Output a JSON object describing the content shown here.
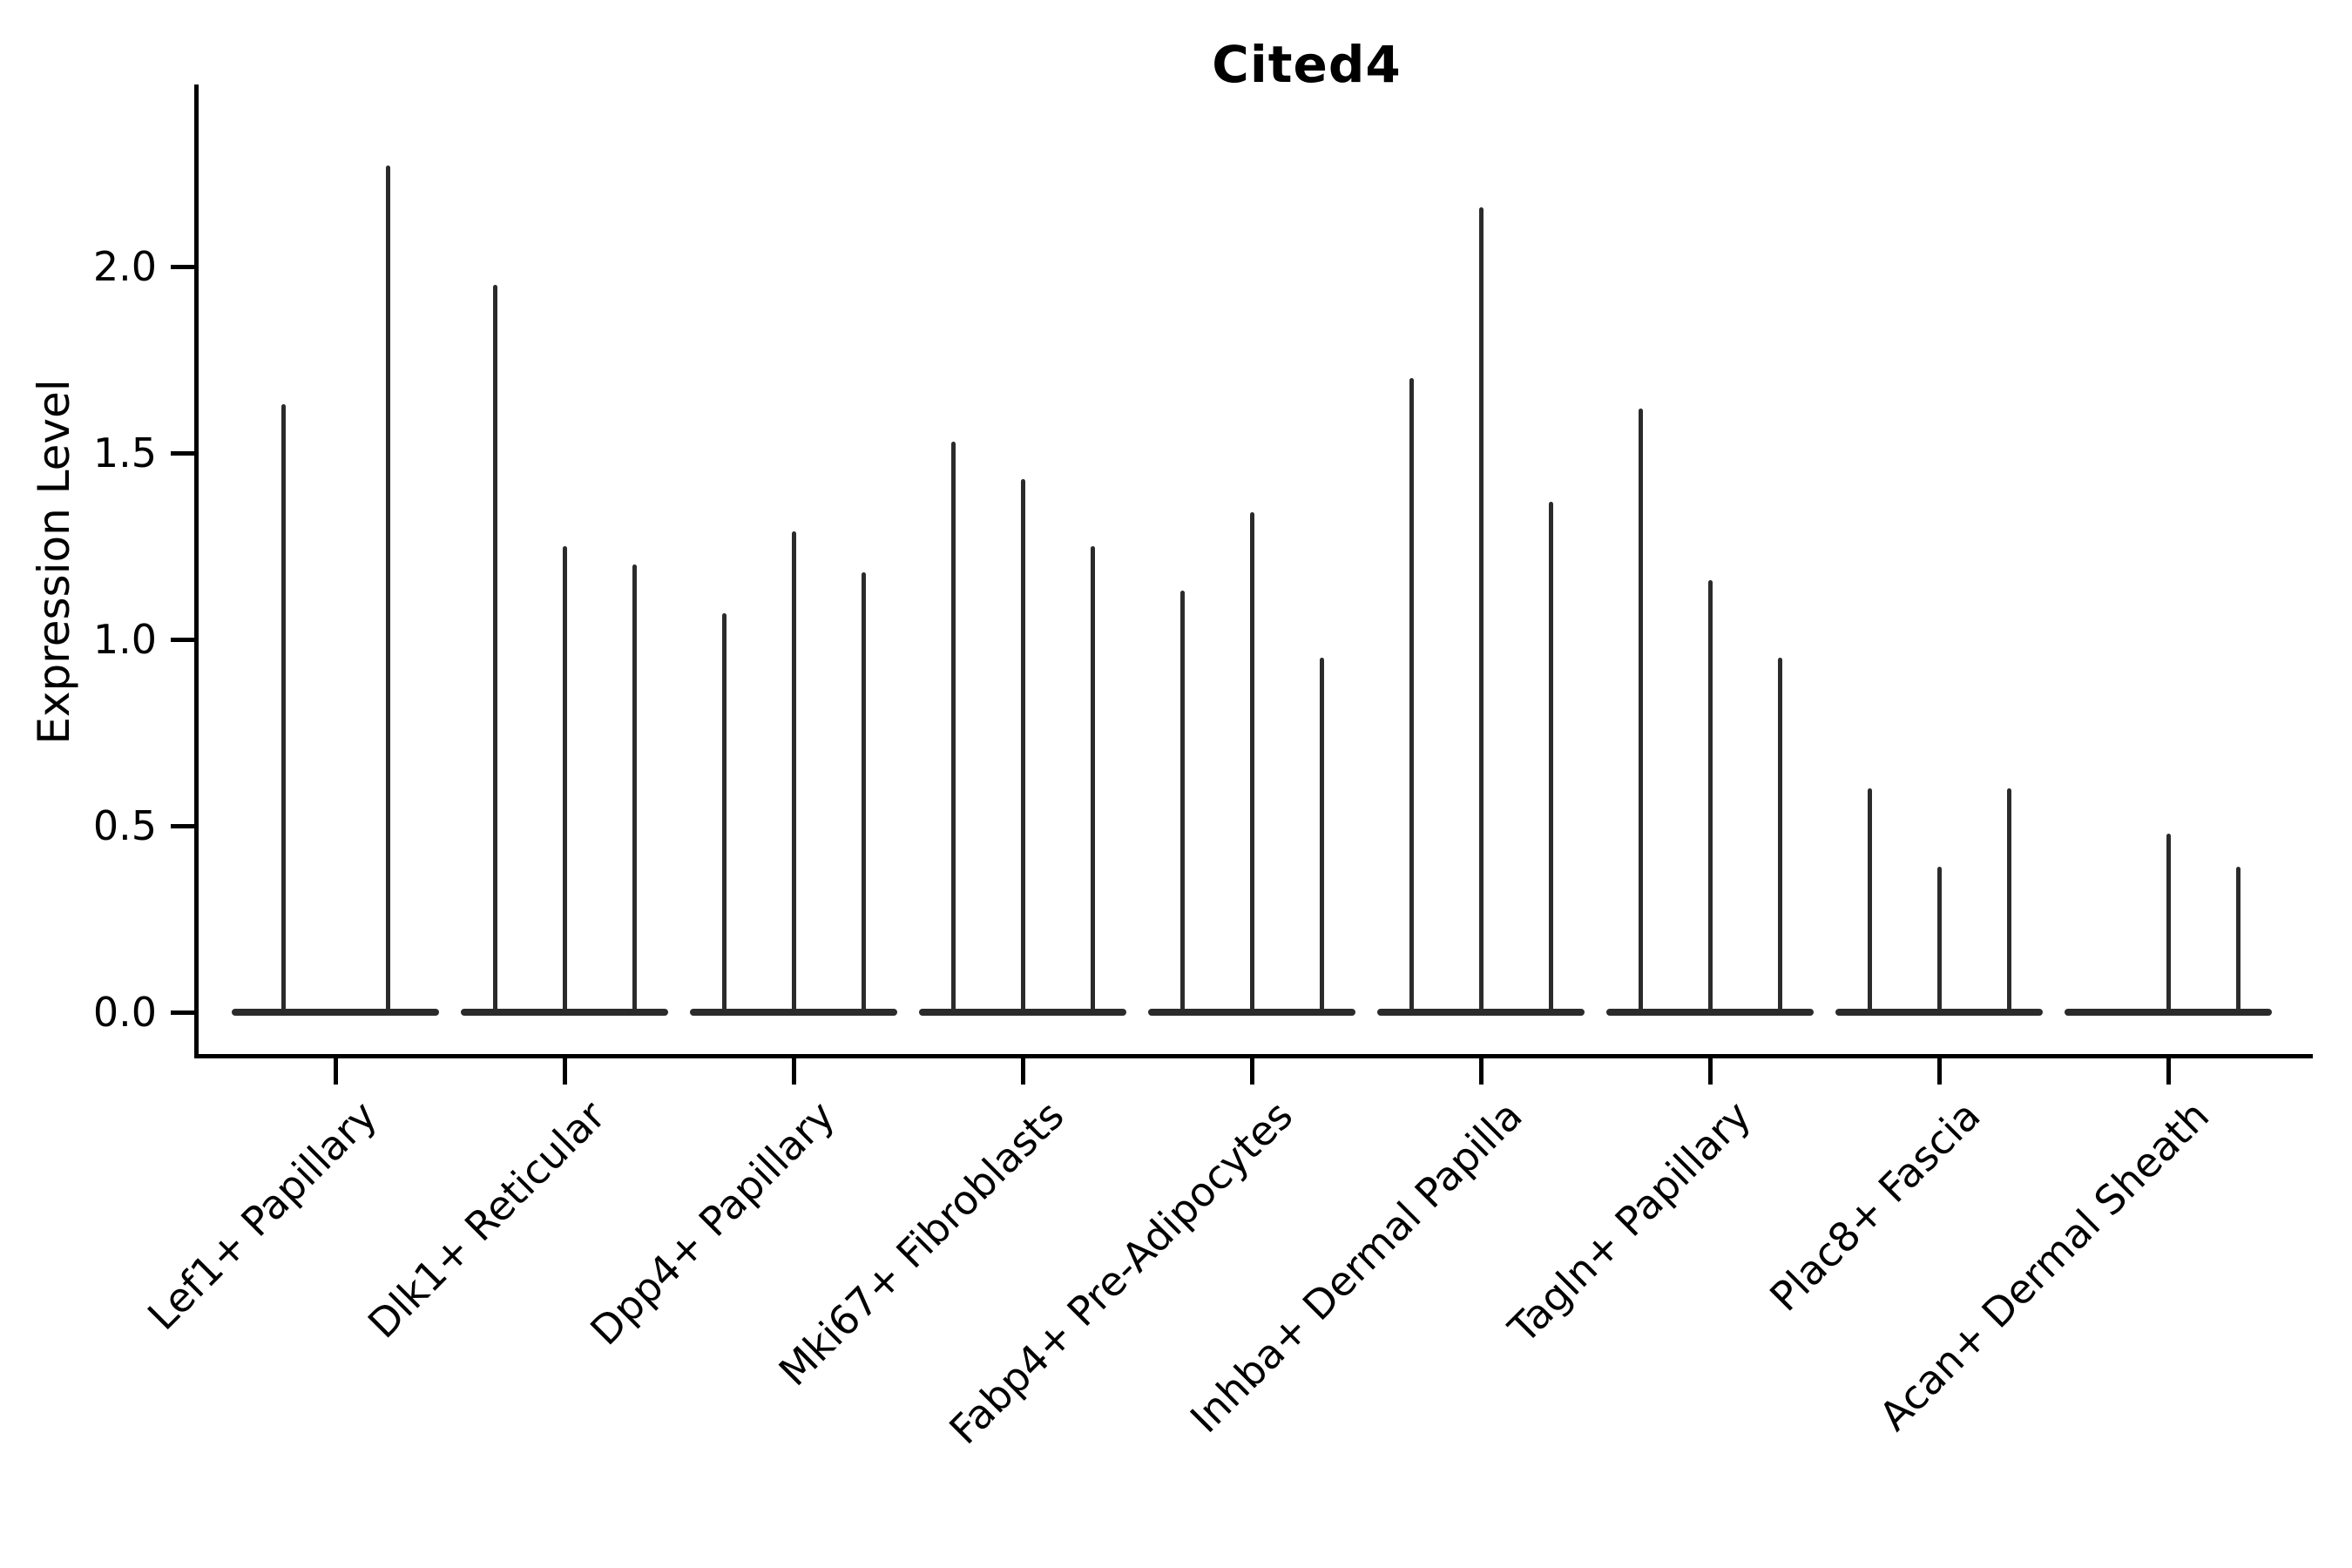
{
  "title": "Cited4",
  "ylabel": "Expression Level",
  "chart_data": {
    "type": "violin",
    "title": "Cited4",
    "xlabel": "",
    "ylabel": "Expression Level",
    "ylim": [
      0,
      2.49
    ],
    "yticks": [
      {
        "label": "0.0",
        "value": 0.0
      },
      {
        "label": "0.5",
        "value": 0.5
      },
      {
        "label": "1.0",
        "value": 1.0
      },
      {
        "label": "1.5",
        "value": 1.5
      },
      {
        "label": "2.0",
        "value": 2.0
      }
    ],
    "grid": false,
    "legend_position": "none",
    "description": "Needle-thin violins: expression mass concentrated at 0 (flat base blob) with a thin spike reaching the per-violin maximum expression ('peak'). 2-3 violins (split groups) per cell-type category; first violin of 'Acan+ Dermal Sheath' is all-zero (no spike); 'Lef1+ Papillary' has only two (wider-spaced) violins.",
    "categories": [
      "Lef1+ Papillary",
      "Dlk1+ Reticular",
      "Dpp4+ Papillary",
      "Mki67+ Fibroblasts",
      "Fabp4+ Pre-Adipocytes",
      "Inhba+ Dermal Papilla",
      "Tagln+ Papillary",
      "Plac8+ Fascia",
      "Acan+ Dermal Sheath"
    ],
    "groups": [
      {
        "category": "Lef1+ Papillary",
        "violins": [
          {
            "position": -0.75,
            "peak": 1.63
          },
          {
            "position": 0.75,
            "peak": 2.27
          }
        ]
      },
      {
        "category": "Dlk1+ Reticular",
        "violins": [
          {
            "position": -1,
            "peak": 1.95
          },
          {
            "position": 0,
            "peak": 1.25
          },
          {
            "position": 1,
            "peak": 1.2
          }
        ]
      },
      {
        "category": "Dpp4+ Papillary",
        "violins": [
          {
            "position": -1,
            "peak": 1.07
          },
          {
            "position": 0,
            "peak": 1.29
          },
          {
            "position": 1,
            "peak": 1.18
          }
        ]
      },
      {
        "category": "Mki67+ Fibroblasts",
        "violins": [
          {
            "position": -1,
            "peak": 1.53
          },
          {
            "position": 0,
            "peak": 1.43
          },
          {
            "position": 1,
            "peak": 1.25
          }
        ]
      },
      {
        "category": "Fabp4+ Pre-Adipocytes",
        "violins": [
          {
            "position": -1,
            "peak": 1.13
          },
          {
            "position": 0,
            "peak": 1.34
          },
          {
            "position": 1,
            "peak": 0.95
          }
        ]
      },
      {
        "category": "Inhba+ Dermal Papilla",
        "violins": [
          {
            "position": -1,
            "peak": 1.7
          },
          {
            "position": 0,
            "peak": 2.16
          },
          {
            "position": 1,
            "peak": 1.37
          }
        ]
      },
      {
        "category": "Tagln+ Papillary",
        "violins": [
          {
            "position": -1,
            "peak": 1.62
          },
          {
            "position": 0,
            "peak": 1.16
          },
          {
            "position": 1,
            "peak": 0.95
          }
        ]
      },
      {
        "category": "Plac8+ Fascia",
        "violins": [
          {
            "position": -1,
            "peak": 0.6
          },
          {
            "position": 0,
            "peak": 0.39
          },
          {
            "position": 1,
            "peak": 0.6
          }
        ]
      },
      {
        "category": "Acan+ Dermal Sheath",
        "violins": [
          {
            "position": -1,
            "peak": 0.0
          },
          {
            "position": 0,
            "peak": 0.48
          },
          {
            "position": 1,
            "peak": 0.39
          }
        ]
      }
    ],
    "colors": {
      "violin": "#2b2b2b",
      "axis": "#000000",
      "text": "#000000",
      "background": "#ffffff"
    }
  }
}
